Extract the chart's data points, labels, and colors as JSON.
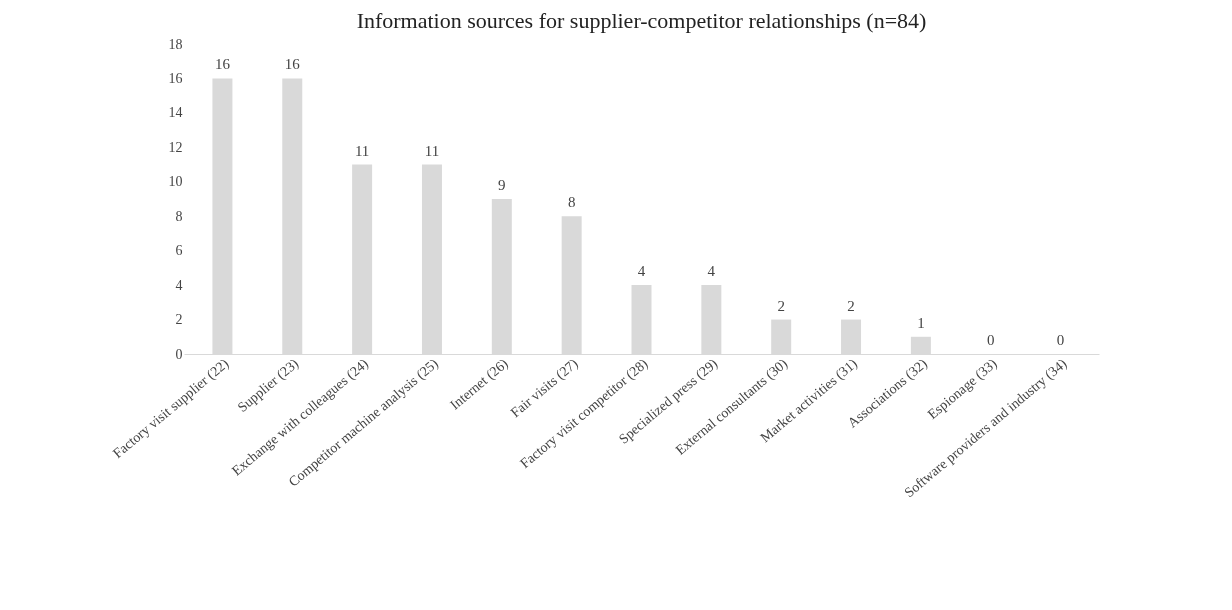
{
  "chart_data": {
    "type": "bar",
    "title": "Information sources for supplier-competitor relationships (n=84)",
    "categories": [
      "Factory visit supplier (22)",
      "Supplier (23)",
      "Exchange with colleagues (24)",
      "Competitor machine analysis (25)",
      "Internet (26)",
      "Fair visits (27)",
      "Factory visit competitor (28)",
      "Specialized press (29)",
      "External consultants (30)",
      "Market activities (31)",
      "Associations (32)",
      "Espionage (33)",
      "Software providers and industry (34)"
    ],
    "values": [
      16,
      16,
      11,
      11,
      9,
      8,
      4,
      4,
      2,
      2,
      1,
      0,
      0
    ],
    "color": "#d9d9d9",
    "ylim": [
      0,
      18
    ],
    "yticks": [
      0,
      2,
      4,
      6,
      8,
      10,
      12,
      14,
      16,
      18
    ],
    "data_labels": true,
    "grid": false
  }
}
